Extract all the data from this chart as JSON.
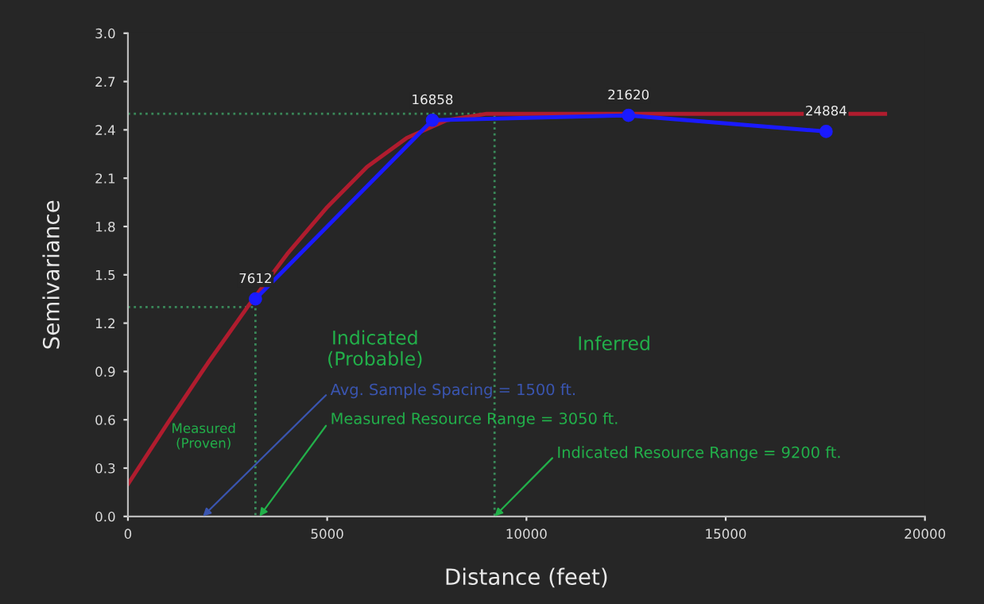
{
  "chart_data": {
    "type": "line",
    "xlabel": "Distance (feet)",
    "ylabel": "Semivariance",
    "xlim": [
      0,
      20000
    ],
    "ylim": [
      0,
      3.0
    ],
    "xticks": [
      0,
      5000,
      10000,
      15000,
      20000
    ],
    "yticks": [
      {
        "value": 0,
        "label": "0.0"
      },
      0.3,
      0.6,
      0.9,
      1.2,
      1.5,
      1.8,
      2.1,
      2.4,
      2.7,
      {
        "value": 3,
        "label": "3.0"
      }
    ],
    "grid": false,
    "legend": false,
    "series": [
      {
        "color": "#3a8a5a",
        "line_style": "dotted",
        "marker": "none",
        "x": [
          0,
          3200,
          3200
        ],
        "values": [
          1.3,
          1.3,
          0
        ]
      },
      {
        "color": "#3a8a5a",
        "line_style": "dotted",
        "marker": "none",
        "x": [
          0,
          9200,
          9200
        ],
        "values": [
          2.5,
          2.5,
          0
        ]
      },
      {
        "color": "#b01c2e",
        "line_style": "solid",
        "marker": "none",
        "x": [
          0,
          1000,
          2000,
          3000,
          4000,
          5000,
          6000,
          7000,
          8000,
          9000,
          19000
        ],
        "values": [
          0.2,
          0.58,
          0.95,
          1.3,
          1.63,
          1.92,
          2.17,
          2.35,
          2.46,
          2.5,
          2.5
        ]
      },
      {
        "color": "#1a1aff",
        "line_style": "solid",
        "marker": "circle",
        "x": [
          3200,
          7640,
          12560,
          17520
        ],
        "values": [
          1.35,
          2.46,
          2.49,
          2.39
        ]
      }
    ],
    "annotations": [
      {
        "text": "7612",
        "x": 3200,
        "y": 1.35
      },
      {
        "text": "16858",
        "x": 7640,
        "y": 2.46
      },
      {
        "text": "21620",
        "x": 12560,
        "y": 2.49
      },
      {
        "text": "24884",
        "x": 17520,
        "y": 2.39
      },
      "Measured\n(Proven)",
      "Indicated\n(Probable)",
      "Inferred",
      "Avg. Sample Spacing = 1500 ft.",
      {
        "text": "Measured Resource Range = 3050 ft.",
        "x": 3300,
        "y": 0
      },
      {
        "text": "Indicated Resource Range = 9200 ft.",
        "x": 9200,
        "y": 0
      }
    ]
  }
}
